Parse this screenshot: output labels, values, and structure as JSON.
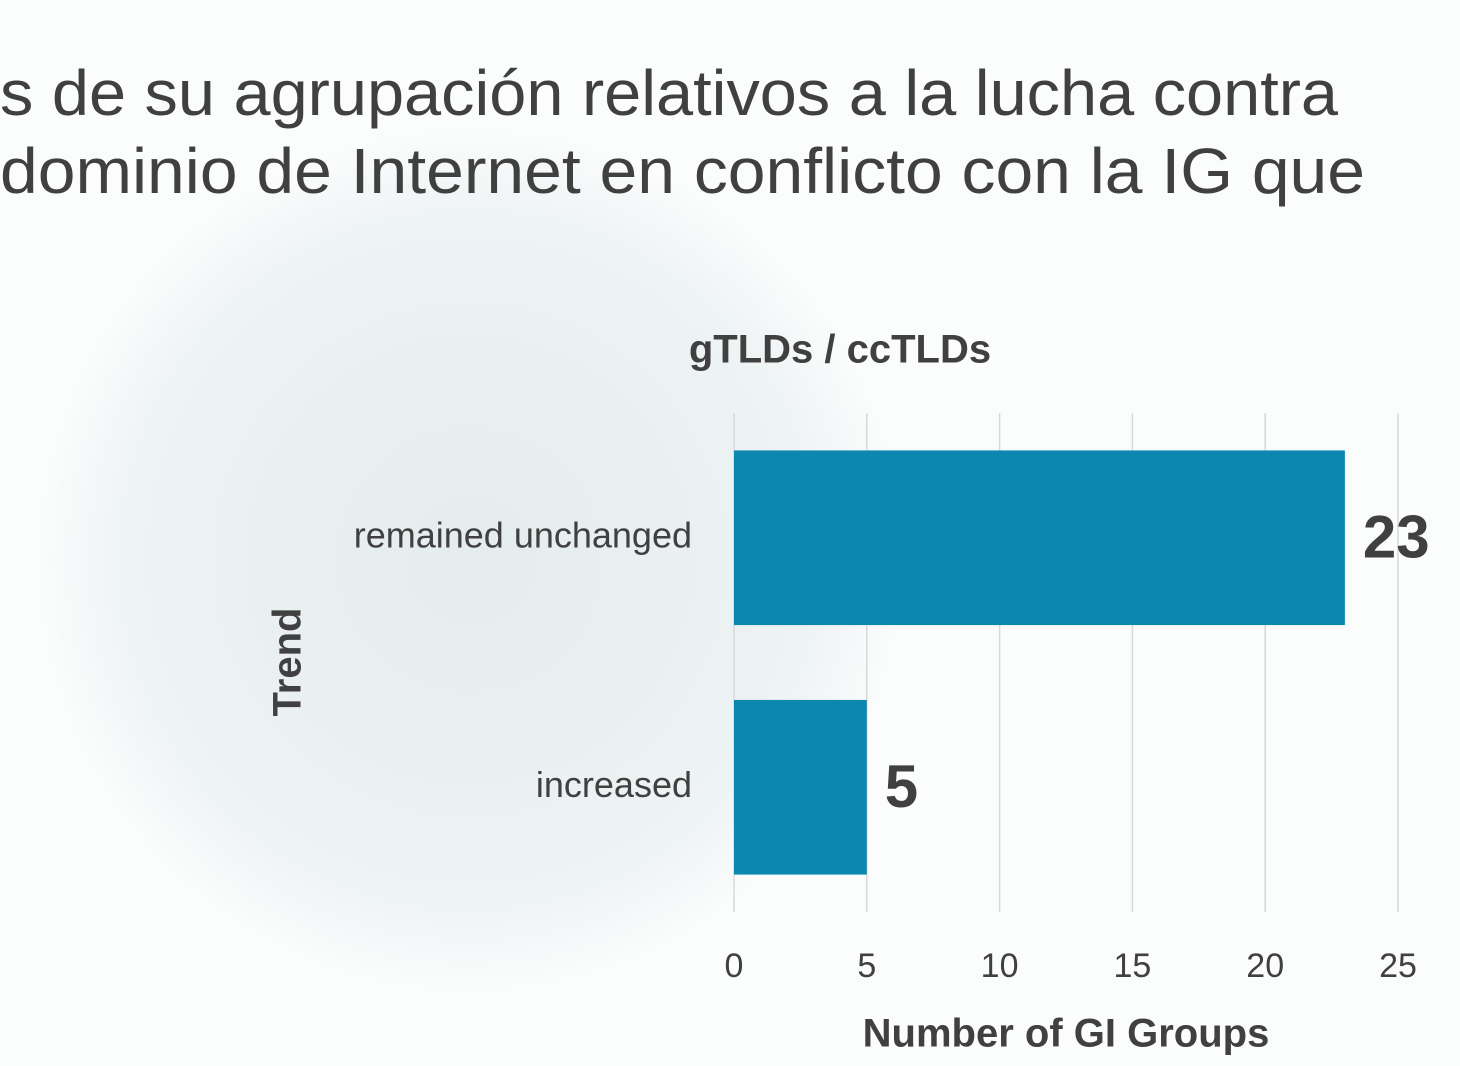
{
  "header": {
    "lines": [
      "s de su agrupación relativos a la lucha contra",
      "dominio de Internet en conflicto con la IG que"
    ]
  },
  "chart_data": {
    "type": "bar",
    "orientation": "horizontal",
    "title": "gTLDs / ccTLDs",
    "x_label": "Number of GI Groups",
    "y_label": "Trend",
    "categories": [
      "remained unchanged",
      "increased"
    ],
    "values": [
      23,
      5
    ],
    "color": "#0b87b0",
    "xlim": [
      0,
      25
    ],
    "xticks": [
      0,
      5,
      10,
      15,
      20,
      25
    ],
    "grid": true
  }
}
